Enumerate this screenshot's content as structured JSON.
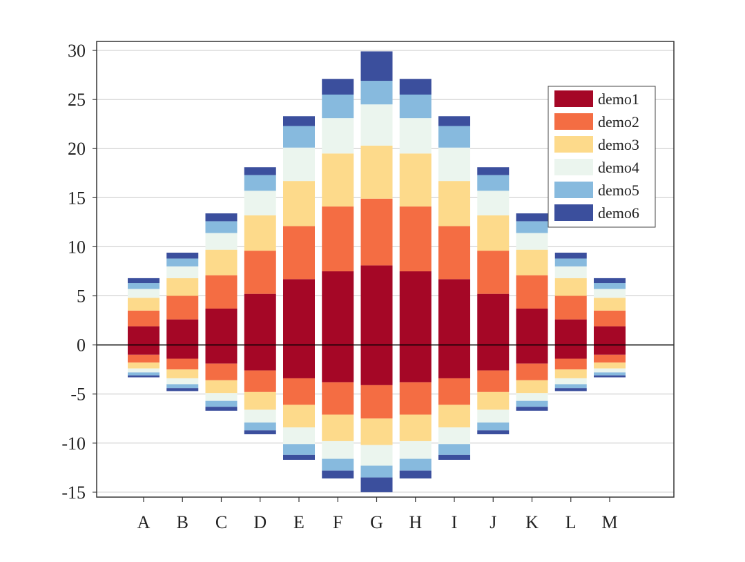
{
  "chart_data": {
    "type": "bar",
    "stacked": true,
    "diverging": true,
    "categories": [
      "A",
      "B",
      "C",
      "D",
      "E",
      "F",
      "G",
      "H",
      "I",
      "J",
      "K",
      "L",
      "M"
    ],
    "positive_series": [
      {
        "name": "demo1",
        "color": "#a50726",
        "values": [
          1.9,
          2.6,
          3.7,
          5.2,
          6.7,
          7.5,
          8.1,
          7.5,
          6.7,
          5.2,
          3.7,
          2.6,
          1.9
        ]
      },
      {
        "name": "demo2",
        "color": "#f46d43",
        "values": [
          1.6,
          2.4,
          3.4,
          4.4,
          5.4,
          6.6,
          6.8,
          6.6,
          5.4,
          4.4,
          3.4,
          2.4,
          1.6
        ]
      },
      {
        "name": "demo3",
        "color": "#fdda8b",
        "values": [
          1.3,
          1.8,
          2.6,
          3.6,
          4.6,
          5.4,
          5.4,
          5.4,
          4.6,
          3.6,
          2.6,
          1.8,
          1.3
        ]
      },
      {
        "name": "demo4",
        "color": "#ebf5ee",
        "values": [
          0.9,
          1.2,
          1.7,
          2.5,
          3.4,
          3.6,
          4.2,
          3.6,
          3.4,
          2.5,
          1.7,
          1.2,
          0.9
        ]
      },
      {
        "name": "demo5",
        "color": "#87bade",
        "values": [
          0.6,
          0.8,
          1.2,
          1.6,
          2.2,
          2.4,
          2.4,
          2.4,
          2.2,
          1.6,
          1.2,
          0.8,
          0.6
        ]
      },
      {
        "name": "demo6",
        "color": "#3b4f9d",
        "values": [
          0.5,
          0.6,
          0.8,
          0.8,
          1.0,
          1.6,
          3.0,
          1.6,
          1.0,
          0.8,
          0.8,
          0.6,
          0.5
        ]
      }
    ],
    "negative_series": [
      {
        "name": "demo1",
        "color": "#a50726",
        "values": [
          -1.0,
          -1.4,
          -1.9,
          -2.6,
          -3.4,
          -3.8,
          -4.1,
          -3.8,
          -3.4,
          -2.6,
          -1.9,
          -1.4,
          -1.0
        ]
      },
      {
        "name": "demo2",
        "color": "#f46d43",
        "values": [
          -0.8,
          -1.1,
          -1.7,
          -2.2,
          -2.7,
          -3.3,
          -3.4,
          -3.3,
          -2.7,
          -2.2,
          -1.7,
          -1.1,
          -0.8
        ]
      },
      {
        "name": "demo3",
        "color": "#fdda8b",
        "values": [
          -0.6,
          -0.9,
          -1.3,
          -1.8,
          -2.3,
          -2.7,
          -2.7,
          -2.7,
          -2.3,
          -1.8,
          -1.3,
          -0.9,
          -0.6
        ]
      },
      {
        "name": "demo4",
        "color": "#ebf5ee",
        "values": [
          -0.4,
          -0.6,
          -0.8,
          -1.3,
          -1.7,
          -1.8,
          -2.1,
          -1.8,
          -1.7,
          -1.3,
          -0.8,
          -0.6,
          -0.4
        ]
      },
      {
        "name": "demo5",
        "color": "#87bade",
        "values": [
          -0.3,
          -0.4,
          -0.6,
          -0.8,
          -1.1,
          -1.2,
          -1.2,
          -1.2,
          -1.1,
          -0.8,
          -0.6,
          -0.4,
          -0.3
        ]
      },
      {
        "name": "demo6",
        "color": "#3b4f9d",
        "values": [
          -0.2,
          -0.3,
          -0.4,
          -0.4,
          -0.5,
          -0.8,
          -1.5,
          -0.8,
          -0.5,
          -0.4,
          -0.4,
          -0.3,
          -0.2
        ]
      }
    ],
    "legend": [
      "demo1",
      "demo2",
      "demo3",
      "demo4",
      "demo5",
      "demo6"
    ],
    "legend_position": "top-right",
    "ylim": [
      -15,
      30
    ],
    "yticks": [
      30,
      25,
      20,
      15,
      10,
      5,
      0,
      -5,
      -10,
      -15
    ],
    "grid": "horizontal",
    "zero_line": true,
    "title": "",
    "xlabel": "",
    "ylabel": ""
  }
}
